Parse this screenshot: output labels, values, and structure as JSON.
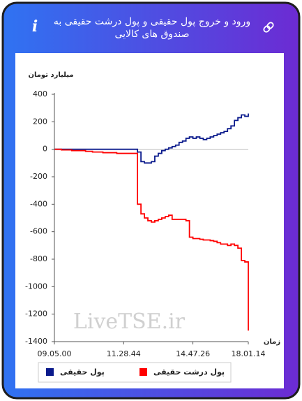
{
  "chart_data": {
    "type": "line",
    "title": "ورود و خروج پول حقیقی و پول درشت حقیقی به صندوق های کالایی",
    "y_label": "میلیارد تومان",
    "x_label": "زمان",
    "watermark": "LiveTSE.ir",
    "categories": [
      "09.05.00",
      null,
      null,
      null,
      null,
      null,
      null,
      null,
      null,
      null,
      null,
      null,
      null,
      null,
      null,
      null,
      null,
      null,
      null,
      null,
      "11.28.44",
      null,
      null,
      null,
      null,
      null,
      null,
      null,
      null,
      null,
      null,
      null,
      null,
      null,
      null,
      null,
      null,
      null,
      null,
      null,
      "14.47.26",
      null,
      null,
      null,
      null,
      null,
      null,
      null,
      null,
      null,
      null,
      null,
      null,
      null,
      null,
      null,
      "18.01.14"
    ],
    "ylim": [
      -1400,
      400
    ],
    "yticks": [
      -1400,
      -1200,
      -1000,
      -800,
      -600,
      -400,
      -200,
      0,
      200,
      400
    ],
    "grid": false,
    "series": [
      {
        "name": "پول حقیقی",
        "color": "#0a1a8c",
        "fill": "#e6f2fb",
        "values": [
          0,
          0,
          0,
          0,
          0,
          0,
          0,
          0,
          0,
          0,
          0,
          0,
          0,
          0,
          0,
          0,
          0,
          0,
          0,
          0,
          0,
          0,
          0,
          0,
          -20,
          -90,
          -100,
          -100,
          -90,
          -50,
          -30,
          -10,
          0,
          10,
          20,
          30,
          50,
          60,
          80,
          90,
          80,
          90,
          80,
          70,
          80,
          90,
          100,
          110,
          120,
          130,
          150,
          170,
          210,
          230,
          250,
          240,
          260
        ]
      },
      {
        "name": "پول درشت حقیقی",
        "color": "#ff0000",
        "fill": "#fdf5c4",
        "values": [
          0,
          0,
          -5,
          -5,
          -5,
          -10,
          -10,
          -10,
          -10,
          -15,
          -15,
          -20,
          -20,
          -20,
          -25,
          -25,
          -25,
          -25,
          -30,
          -30,
          -30,
          -30,
          -30,
          -30,
          -400,
          -470,
          -500,
          -520,
          -530,
          -520,
          -510,
          -500,
          -490,
          -480,
          -510,
          -510,
          -510,
          -510,
          -520,
          -640,
          -650,
          -650,
          -655,
          -660,
          -660,
          -665,
          -670,
          -680,
          -690,
          -690,
          -700,
          -690,
          -700,
          -720,
          -810,
          -820,
          -1320
        ]
      }
    ]
  }
}
